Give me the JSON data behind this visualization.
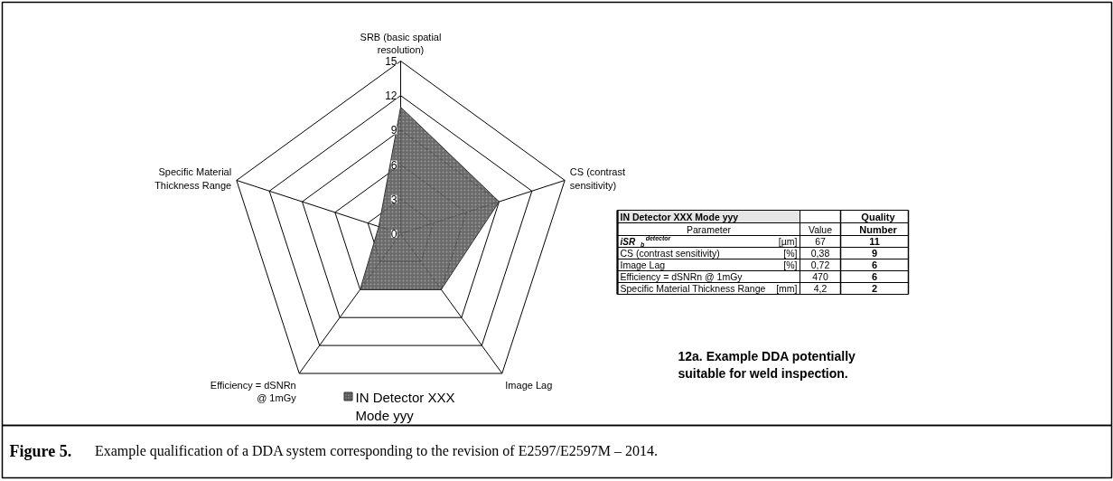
{
  "chart_data": {
    "type": "radar",
    "categories": [
      "SRB (basic spatial resolution)",
      "CS (contrast sensitivity)",
      "Image Lag",
      "Efficiency = dSNRn @ 1mGy",
      "Specific Material Thickness Range"
    ],
    "series": [
      {
        "name": "IN  Detector XXX Mode yyy",
        "color": "#5a5a5a",
        "values": [
          11,
          9,
          6,
          6,
          2
        ]
      }
    ],
    "ylim": [
      0,
      15
    ],
    "yticks": [
      0,
      3,
      6,
      9,
      12,
      15
    ],
    "legend": "bottom",
    "annotations": [
      "IN  Detector XXX    Mode yyy",
      "Quality Number",
      "Parameter",
      "Value",
      "iSR$_{b}$$^{detector}$",
      "[µm]",
      "67",
      "CS (contrast sensitivity)",
      "[%]",
      "0,38",
      "Image Lag",
      "[%]",
      "0,72",
      "Efficiency = dSNRn @ 1mGy",
      "470",
      "Specific Material Thickness Range",
      "[mm]",
      "4,2",
      "12a. Example DDA potentially suitable for weld inspection.",
      "Figure 5. Example qualification of a DDA system corresponding to the revision of E2597/E2597M – 2014.",
      "11",
      "9",
      "6",
      "6",
      "2"
    ]
  }
}
